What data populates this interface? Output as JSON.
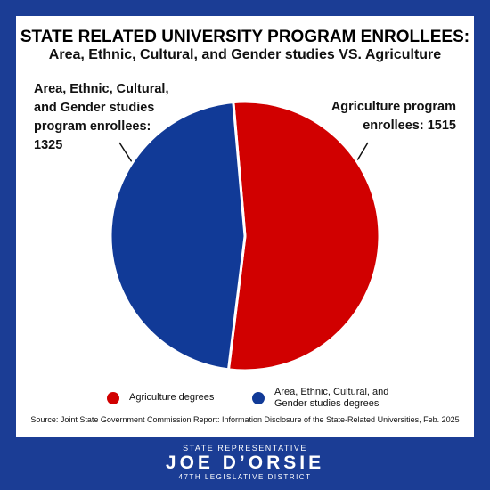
{
  "chart_data": {
    "type": "pie",
    "title": "STATE RELATED UNIVERSITY PROGRAM ENROLLEES:",
    "subtitle": "Area, Ethnic, Cultural, and Gender studies VS. Agriculture",
    "categories": [
      "Agriculture degrees",
      "Area, Ethnic, Cultural, and Gender studies degrees"
    ],
    "values": [
      1515,
      1325
    ],
    "value_labels": [
      "Agriculture program enrollees: 1515",
      "Area, Ethnic, Cultural, and Gender studies program enrollees: 1325"
    ],
    "colors": [
      "#d10000",
      "#113a97"
    ],
    "legend": "bottom",
    "source": "Source: Joint State Government Commission Report: Information Disclosure of the State-Related Universities, Feb. 2025"
  },
  "footer": {
    "role": "STATE REPRESENTATIVE",
    "name": "JOE D’ORSIE",
    "district": "47TH LEGISLATIVE DISTRICT"
  }
}
